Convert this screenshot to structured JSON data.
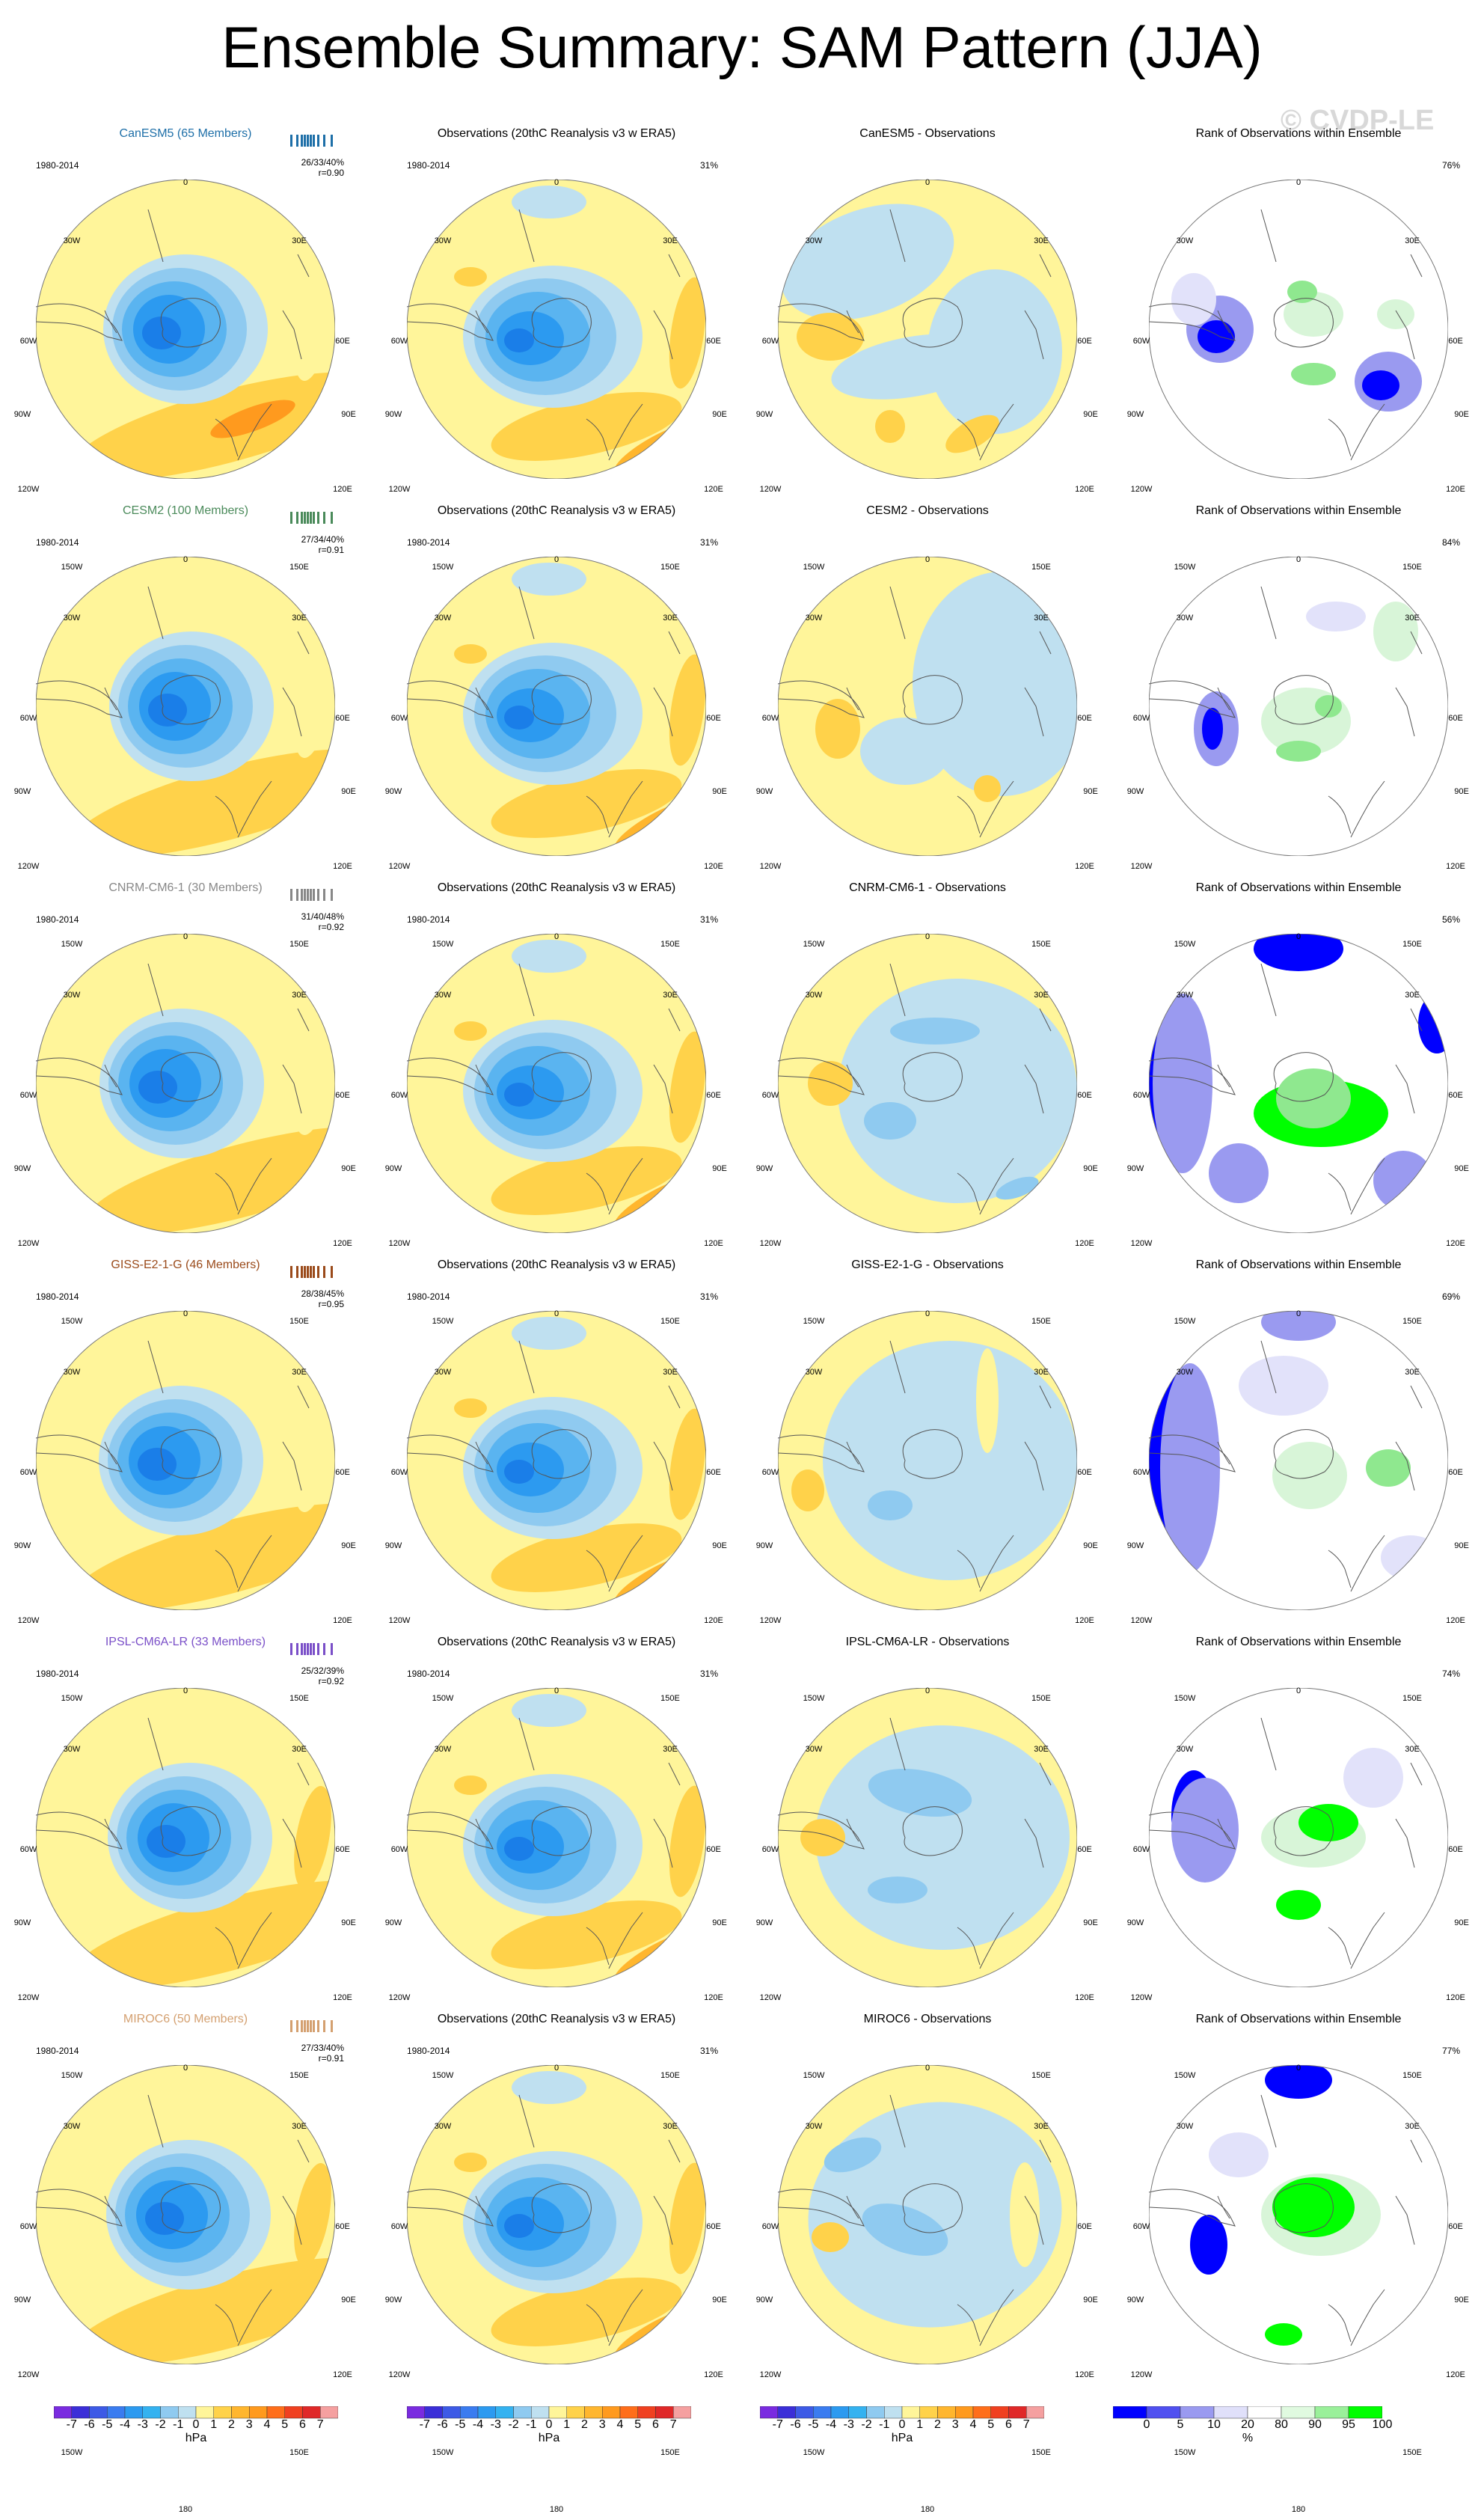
{
  "title": "Ensemble Summary: SAM Pattern (JJA)",
  "watermark": "© CVDP-LE",
  "period": "1980-2014",
  "obs_title": "Observations (20thC Reanalysis v3 w ERA5)",
  "obs_percent": "31%",
  "rank_title": "Rank of Observations within Ensemble",
  "lon_labels": [
    "0",
    "30E",
    "60E",
    "90E",
    "120E",
    "150E",
    "180",
    "150W",
    "120W",
    "90W",
    "60W",
    "30W"
  ],
  "chart_data": {
    "type": "polar-contour-map-grid",
    "rows": [
      {
        "model": "CanESM5",
        "label": "CanESM5 (65 Members)",
        "color": "#1e6fa8",
        "stats": "26/33/40%",
        "r": "r=0.90",
        "diff_title": "CanESM5 - Observations",
        "rank_pct": "76%"
      },
      {
        "model": "CESM2",
        "label": "CESM2 (100 Members)",
        "color": "#4a8a5a",
        "stats": "27/34/40%",
        "r": "r=0.91",
        "diff_title": "CESM2 - Observations",
        "rank_pct": "84%"
      },
      {
        "model": "CNRM-CM6-1",
        "label": "CNRM-CM6-1 (30 Members)",
        "color": "#888888",
        "stats": "31/40/48%",
        "r": "r=0.92",
        "diff_title": "CNRM-CM6-1 - Observations",
        "rank_pct": "56%"
      },
      {
        "model": "GISS-E2-1-G",
        "label": "GISS-E2-1-G (46 Members)",
        "color": "#9a4a1a",
        "stats": "28/38/45%",
        "r": "r=0.95",
        "diff_title": "GISS-E2-1-G - Observations",
        "rank_pct": "69%"
      },
      {
        "model": "IPSL-CM6A-LR",
        "label": "IPSL-CM6A-LR (33 Members)",
        "color": "#7a4fc8",
        "stats": "25/32/39%",
        "r": "r=0.92",
        "diff_title": "IPSL-CM6A-LR - Observations",
        "rank_pct": "74%"
      },
      {
        "model": "MIROC6",
        "label": "MIROC6 (50 Members)",
        "color": "#d4a070",
        "stats": "27/33/40%",
        "r": "r=0.91",
        "diff_title": "MIROC6 - Observations",
        "rank_pct": "77%"
      }
    ],
    "hpa_colorbar": {
      "labels": [
        "-7",
        "-6",
        "-5",
        "-4",
        "-3",
        "-2",
        "-1",
        "0",
        "1",
        "2",
        "3",
        "4",
        "5",
        "6",
        "7"
      ],
      "colors": [
        "#7a2be0",
        "#3b2ed8",
        "#3d5ae6",
        "#3a7cf0",
        "#2c9af0",
        "#34b2f0",
        "#8fcaf0",
        "#bfe0f0",
        "#fff59a",
        "#ffd24a",
        "#ffb62e",
        "#ff9a1e",
        "#ff6e1a",
        "#f04020",
        "#e02828",
        "#f5a0a0"
      ],
      "unit": "hPa"
    },
    "rank_colorbar": {
      "labels": [
        "0",
        "5",
        "10",
        "20",
        "80",
        "90",
        "95",
        "100"
      ],
      "colors": [
        "#0000ff",
        "#5050f0",
        "#9a9af0",
        "#e0e0fa",
        "#ffffff",
        "#e0fae0",
        "#9af09a",
        "#00ff00"
      ],
      "unit": "%"
    }
  }
}
